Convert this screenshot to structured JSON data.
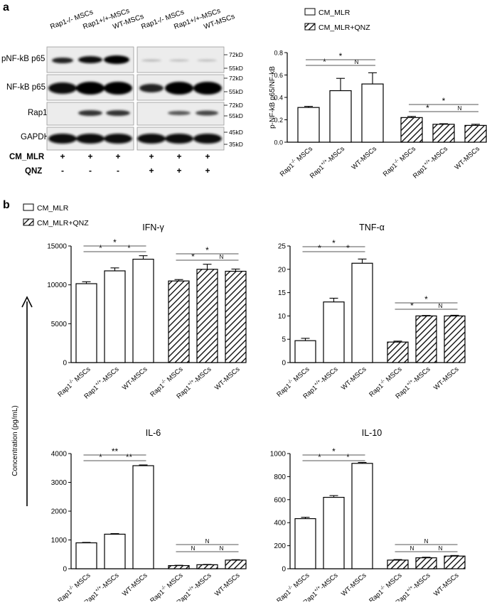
{
  "panel_a": {
    "letter": "a",
    "blot": {
      "lane_labels_left": [
        "Rap1-/- MSCs",
        "Rap1+/+-MSCs",
        "WT-MSCs"
      ],
      "lane_labels_right": [
        "Rap1-/- MSCs",
        "Rap1+/+-MSCs",
        "WT-MSCs"
      ],
      "rows": [
        {
          "label": "pNF-kB  p65",
          "markers": [
            "72kD",
            "55kD"
          ]
        },
        {
          "label": "NF-kB p65",
          "markers": [
            "72kD",
            "55kD"
          ]
        },
        {
          "label": "Rap1",
          "markers": [
            "72kD",
            "55kD"
          ]
        },
        {
          "label": "GAPDH",
          "markers": [
            "45kD",
            "35kD"
          ]
        }
      ],
      "conditions": [
        {
          "label": "CM_MLR",
          "values": [
            "+",
            "+",
            "+",
            "+",
            "+",
            "+"
          ]
        },
        {
          "label": "QNZ",
          "values": [
            "-",
            "-",
            "-",
            "+",
            "+",
            "+"
          ]
        }
      ]
    },
    "legend": [
      "CM_MLR",
      "CM_MLR+QNZ"
    ]
  },
  "panel_b": {
    "letter": "b",
    "legend": [
      "CM_MLR",
      "CM_MLR+QNZ"
    ],
    "shared_ylabel": "Concentration (pg/mL)"
  },
  "chart_data": [
    {
      "id": "a-ratio",
      "type": "bar",
      "title": "",
      "ylabel": "p-NF-kB p65/NF-kB",
      "ylim": [
        0,
        0.8
      ],
      "yticks": [
        0.0,
        0.2,
        0.4,
        0.6,
        0.8
      ],
      "ytick_labels": [
        "0.0",
        "0.2",
        "0.4",
        "0.6",
        "0.8"
      ],
      "categories": [
        "Rap1-/- MSCs",
        "Rap1+/+-MSCs",
        "WT-MSCs",
        "Rap1-/- MSCs",
        "Rap1+/+-MSCs",
        "WT-MSCs"
      ],
      "values": [
        0.31,
        0.46,
        0.52,
        0.22,
        0.16,
        0.15
      ],
      "errors": [
        0.01,
        0.11,
        0.1,
        0.01,
        0.005,
        0.01
      ],
      "groups": [
        "CM_MLR",
        "CM_MLR",
        "CM_MLR",
        "CM_MLR+QNZ",
        "CM_MLR+QNZ",
        "CM_MLR+QNZ"
      ],
      "significance": [
        {
          "from": 0,
          "to": 1,
          "label": "*"
        },
        {
          "from": 1,
          "to": 2,
          "label": "N"
        },
        {
          "from": 0,
          "to": 2,
          "label": "*"
        },
        {
          "from": 3,
          "to": 4,
          "label": "*"
        },
        {
          "from": 4,
          "to": 5,
          "label": "N"
        },
        {
          "from": 3,
          "to": 5,
          "label": "*"
        }
      ]
    },
    {
      "id": "ifn",
      "type": "bar",
      "title": "IFN-γ",
      "ylim": [
        0,
        15000
      ],
      "yticks": [
        0,
        5000,
        10000,
        15000
      ],
      "ytick_labels": [
        "0",
        "5000",
        "10000",
        "15000"
      ],
      "categories": [
        "Rap1-/- MSCs",
        "Rap1+/+-MSCs",
        "WT-MSCs",
        "Rap1-/- MSCs",
        "Rap1+/+-MSCs",
        "WT-MSCs"
      ],
      "values": [
        10150,
        11800,
        13300,
        10500,
        12000,
        11750
      ],
      "errors": [
        250,
        380,
        450,
        180,
        650,
        280
      ],
      "groups": [
        "CM_MLR",
        "CM_MLR",
        "CM_MLR",
        "CM_MLR+QNZ",
        "CM_MLR+QNZ",
        "CM_MLR+QNZ"
      ],
      "significance": [
        {
          "from": 0,
          "to": 1,
          "label": "*"
        },
        {
          "from": 1,
          "to": 2,
          "label": "*"
        },
        {
          "from": 0,
          "to": 2,
          "label": "*"
        },
        {
          "from": 3,
          "to": 4,
          "label": "*"
        },
        {
          "from": 4,
          "to": 5,
          "label": "N"
        },
        {
          "from": 3,
          "to": 5,
          "label": "*"
        }
      ]
    },
    {
      "id": "tnf",
      "type": "bar",
      "title": "TNF-α",
      "ylim": [
        0,
        25
      ],
      "yticks": [
        0,
        5,
        10,
        15,
        20,
        25
      ],
      "ytick_labels": [
        "0",
        "5",
        "10",
        "15",
        "20",
        "25"
      ],
      "categories": [
        "Rap1-/- MSCs",
        "Rap1+/+-MSCs",
        "WT-MSCs",
        "Rap1-/- MSCs",
        "Rap1+/+-MSCs",
        "WT-MSCs"
      ],
      "values": [
        4.7,
        13.0,
        21.3,
        4.4,
        10.0,
        10.0
      ],
      "errors": [
        0.5,
        0.8,
        0.9,
        0.2,
        0.1,
        0.15
      ],
      "groups": [
        "CM_MLR",
        "CM_MLR",
        "CM_MLR",
        "CM_MLR+QNZ",
        "CM_MLR+QNZ",
        "CM_MLR+QNZ"
      ],
      "significance": [
        {
          "from": 0,
          "to": 1,
          "label": "*"
        },
        {
          "from": 1,
          "to": 2,
          "label": "*"
        },
        {
          "from": 0,
          "to": 2,
          "label": "*"
        },
        {
          "from": 3,
          "to": 4,
          "label": "*"
        },
        {
          "from": 4,
          "to": 5,
          "label": "N"
        },
        {
          "from": 3,
          "to": 5,
          "label": "*"
        }
      ]
    },
    {
      "id": "il6",
      "type": "bar",
      "title": "IL-6",
      "ylim": [
        0,
        4000
      ],
      "yticks": [
        0,
        1000,
        2000,
        3000,
        4000
      ],
      "ytick_labels": [
        "0",
        "1000",
        "2000",
        "3000",
        "4000"
      ],
      "categories": [
        "Rap1-/- MSCs",
        "Rap1+/+-MSCs",
        "WT-MSCs",
        "Rap1-/- MSCs",
        "Rap1+/+-MSCs",
        "WT-MSCs"
      ],
      "values": [
        900,
        1200,
        3580,
        110,
        140,
        300
      ],
      "errors": [
        15,
        20,
        25,
        10,
        10,
        15
      ],
      "groups": [
        "CM_MLR",
        "CM_MLR",
        "CM_MLR",
        "CM_MLR+QNZ",
        "CM_MLR+QNZ",
        "CM_MLR+QNZ"
      ],
      "significance": [
        {
          "from": 0,
          "to": 1,
          "label": "*"
        },
        {
          "from": 1,
          "to": 2,
          "label": "**"
        },
        {
          "from": 0,
          "to": 2,
          "label": "**"
        },
        {
          "from": 3,
          "to": 4,
          "label": "N"
        },
        {
          "from": 4,
          "to": 5,
          "label": "N"
        },
        {
          "from": 3,
          "to": 5,
          "label": "N"
        }
      ]
    },
    {
      "id": "il10",
      "type": "bar",
      "title": "IL-10",
      "ylim": [
        0,
        1000
      ],
      "yticks": [
        0,
        200,
        400,
        600,
        800,
        1000
      ],
      "ytick_labels": [
        "0",
        "200",
        "400",
        "600",
        "800",
        "1000"
      ],
      "categories": [
        "Rap1-/- MSCs",
        "Rap1+/+-MSCs",
        "WT-MSCs",
        "Rap1-/- MSCs",
        "Rap1+/+-MSCs",
        "WT-MSCs"
      ],
      "values": [
        435,
        620,
        915,
        75,
        95,
        110
      ],
      "errors": [
        12,
        15,
        8,
        5,
        5,
        5
      ],
      "groups": [
        "CM_MLR",
        "CM_MLR",
        "CM_MLR",
        "CM_MLR+QNZ",
        "CM_MLR+QNZ",
        "CM_MLR+QNZ"
      ],
      "significance": [
        {
          "from": 0,
          "to": 1,
          "label": "*"
        },
        {
          "from": 1,
          "to": 2,
          "label": "*"
        },
        {
          "from": 0,
          "to": 2,
          "label": "*"
        },
        {
          "from": 3,
          "to": 4,
          "label": "N"
        },
        {
          "from": 4,
          "to": 5,
          "label": "N"
        },
        {
          "from": 3,
          "to": 5,
          "label": "N"
        }
      ]
    }
  ]
}
